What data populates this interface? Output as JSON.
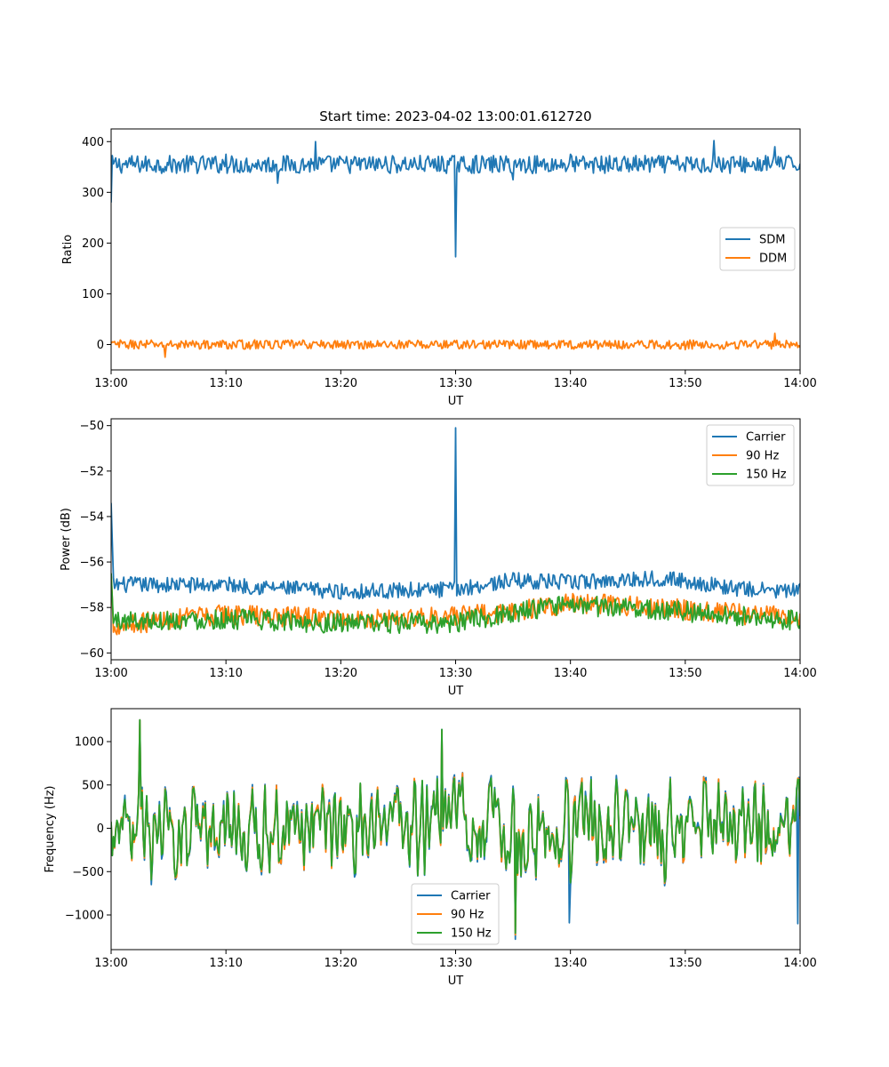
{
  "figure": {
    "title": "Start time: 2023-04-02 13:00:01.612720"
  },
  "chart_data": [
    {
      "type": "line",
      "title": "Start time: 2023-04-02 13:00:01.612720",
      "xlabel": "UT",
      "ylabel": "Ratio",
      "x_range": [
        "13:00",
        "14:00"
      ],
      "xlim_minutes": [
        0,
        60
      ],
      "ylim": [
        -50,
        425
      ],
      "x_tick_labels": [
        "13:00",
        "13:10",
        "13:20",
        "13:30",
        "13:40",
        "13:50",
        "14:00"
      ],
      "y_ticks": [
        0,
        100,
        200,
        300,
        400
      ],
      "legend_position": "center-right",
      "grid": false,
      "series": [
        {
          "name": "SDM",
          "color": "#1f77b4",
          "baseline": 355,
          "noise_amplitude": 18,
          "initial_value": 280,
          "spikes": [
            {
              "x": 30.0,
              "y": 173
            }
          ],
          "x_minutes": [
            0,
            0.5,
            2,
            5,
            10,
            14.5,
            17.8,
            20,
            25,
            29.6,
            30.0,
            30.4,
            35,
            40,
            45,
            50,
            52.5,
            55,
            57.8,
            60
          ],
          "values": [
            280,
            340,
            352,
            365,
            375,
            318,
            400,
            350,
            360,
            360,
            173,
            360,
            325,
            375,
            365,
            350,
            402,
            350,
            390,
            350
          ]
        },
        {
          "name": "DDM",
          "color": "#ff7f0e",
          "baseline": 0,
          "noise_amplitude": 9,
          "spikes": [],
          "x_minutes": [
            0,
            4.7,
            10,
            20,
            30,
            40,
            50,
            57.8,
            60
          ],
          "values": [
            0,
            -25,
            5,
            -5,
            0,
            5,
            -10,
            22,
            3
          ]
        }
      ]
    },
    {
      "type": "line",
      "xlabel": "UT",
      "ylabel": "Power (dB)",
      "x_range": [
        "13:00",
        "14:00"
      ],
      "xlim_minutes": [
        0,
        60
      ],
      "ylim": [
        -60.3,
        -49.7
      ],
      "x_tick_labels": [
        "13:00",
        "13:10",
        "13:20",
        "13:30",
        "13:40",
        "13:50",
        "14:00"
      ],
      "y_ticks": [
        -60,
        -58,
        -56,
        -54,
        -52,
        -50
      ],
      "legend_position": "upper-right",
      "grid": false,
      "series": [
        {
          "name": "Carrier",
          "color": "#1f77b4",
          "trend_x_minutes": [
            0,
            10,
            20,
            30,
            35,
            40,
            48,
            55,
            60
          ],
          "trend_values": [
            -57.0,
            -57.0,
            -57.3,
            -57.2,
            -56.8,
            -56.9,
            -56.7,
            -57.2,
            -57.3
          ],
          "noise_amplitude": 0.35,
          "initial_value": -53.4,
          "spikes": [
            {
              "x": 30.0,
              "y": -50.1
            }
          ]
        },
        {
          "name": "90 Hz",
          "color": "#ff7f0e",
          "trend_x_minutes": [
            0,
            10,
            20,
            30,
            35,
            40,
            48,
            55,
            60
          ],
          "trend_values": [
            -58.8,
            -58.3,
            -58.5,
            -58.4,
            -58.2,
            -57.8,
            -58.0,
            -58.3,
            -58.4
          ],
          "noise_amplitude": 0.45,
          "initial_value": -56.5,
          "spikes": []
        },
        {
          "name": "150 Hz",
          "color": "#2ca02c",
          "trend_x_minutes": [
            0,
            10,
            20,
            30,
            35,
            40,
            48,
            55,
            60
          ],
          "trend_values": [
            -58.6,
            -58.5,
            -58.7,
            -58.7,
            -58.2,
            -57.9,
            -58.1,
            -58.4,
            -58.6
          ],
          "noise_amplitude": 0.45,
          "initial_value": -56.5,
          "spikes": []
        }
      ]
    },
    {
      "type": "line",
      "xlabel": "UT",
      "ylabel": "Frequency (Hz)",
      "x_range": [
        "13:00",
        "14:00"
      ],
      "xlim_minutes": [
        0,
        60
      ],
      "ylim": [
        -1400,
        1380
      ],
      "x_tick_labels": [
        "13:00",
        "13:10",
        "13:20",
        "13:30",
        "13:40",
        "13:50",
        "14:00"
      ],
      "y_ticks": [
        -1000,
        -500,
        0,
        500,
        1000
      ],
      "legend_position": "lower-center",
      "grid": false,
      "series": [
        {
          "name": "Carrier",
          "color": "#1f77b4",
          "baseline": 0,
          "noise_amplitude": 450,
          "extremes": [
            {
              "x": 2.5,
              "y": 1250
            },
            {
              "x": 28.8,
              "y": 1140
            },
            {
              "x": 35.2,
              "y": -1280
            },
            {
              "x": 39.9,
              "y": -1090
            },
            {
              "x": 59.8,
              "y": -1100
            }
          ]
        },
        {
          "name": "90 Hz",
          "color": "#ff7f0e",
          "baseline": 0,
          "noise_amplitude": 430,
          "extremes": [
            {
              "x": 2.5,
              "y": 1250
            },
            {
              "x": 28.8,
              "y": 1120
            },
            {
              "x": 35.2,
              "y": -1230
            }
          ]
        },
        {
          "name": "150 Hz",
          "color": "#2ca02c",
          "baseline": 0,
          "noise_amplitude": 420,
          "extremes": [
            {
              "x": 2.5,
              "y": 1250
            },
            {
              "x": 28.8,
              "y": 1140
            },
            {
              "x": 35.2,
              "y": -1210
            }
          ]
        }
      ]
    }
  ]
}
